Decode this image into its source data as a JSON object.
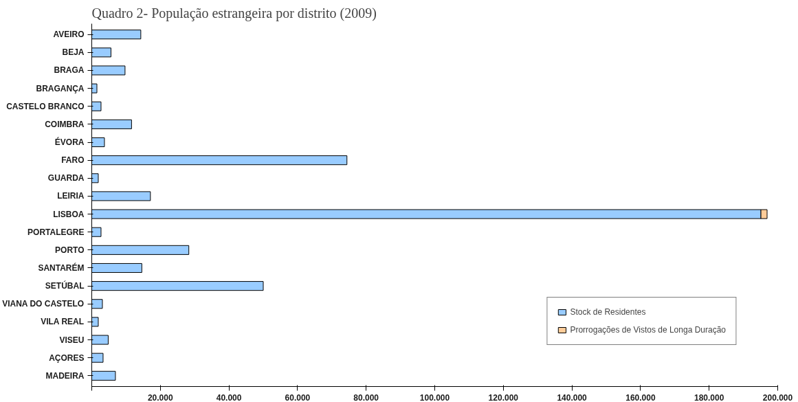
{
  "chart_data": {
    "type": "bar",
    "orientation": "horizontal",
    "stacked": true,
    "title": "Quadro 2- População estrangeira por distrito (2009)",
    "categories": [
      "AVEIRO",
      "BEJA",
      "BRAGA",
      "BRAGANÇA",
      "CASTELO BRANCO",
      "COIMBRA",
      "ÉVORA",
      "FARO",
      "GUARDA",
      "LEIRIA",
      "LISBOA",
      "PORTALEGRE",
      "PORTO",
      "SANTARÉM",
      "SETÚBAL",
      "VIANA DO CASTELO",
      "VILA REAL",
      "VISEU",
      "AÇORES",
      "MADEIRA"
    ],
    "series": [
      {
        "name": "Stock de Residentes",
        "color": "#99ccff",
        "values": [
          14300,
          5600,
          9700,
          1500,
          2700,
          11600,
          3700,
          74400,
          1900,
          17100,
          195100,
          2700,
          28300,
          14600,
          50000,
          3100,
          1900,
          4800,
          3300,
          6900
        ]
      },
      {
        "name": "Prorrogações de Vistos de Longa Duração",
        "color": "#ffcc99",
        "values": [
          null,
          null,
          null,
          null,
          null,
          null,
          null,
          null,
          null,
          null,
          1800,
          null,
          null,
          null,
          null,
          null,
          null,
          null,
          null,
          null
        ]
      }
    ],
    "xlim": [
      0,
      200000
    ],
    "xticks": [
      {
        "value": 0,
        "label": null
      },
      {
        "value": 20000,
        "label": "20.000"
      },
      {
        "value": 40000,
        "label": "40.000"
      },
      {
        "value": 60000,
        "label": "60.000"
      },
      {
        "value": 80000,
        "label": "80.000"
      },
      {
        "value": 100000,
        "label": "100.000"
      },
      {
        "value": 120000,
        "label": "120.000"
      },
      {
        "value": 140000,
        "label": "140.000"
      },
      {
        "value": 160000,
        "label": "160.000"
      },
      {
        "value": 180000,
        "label": "180.000"
      },
      {
        "value": 200000,
        "label": "200.000"
      }
    ],
    "grid": false,
    "legend": "bottom right"
  }
}
